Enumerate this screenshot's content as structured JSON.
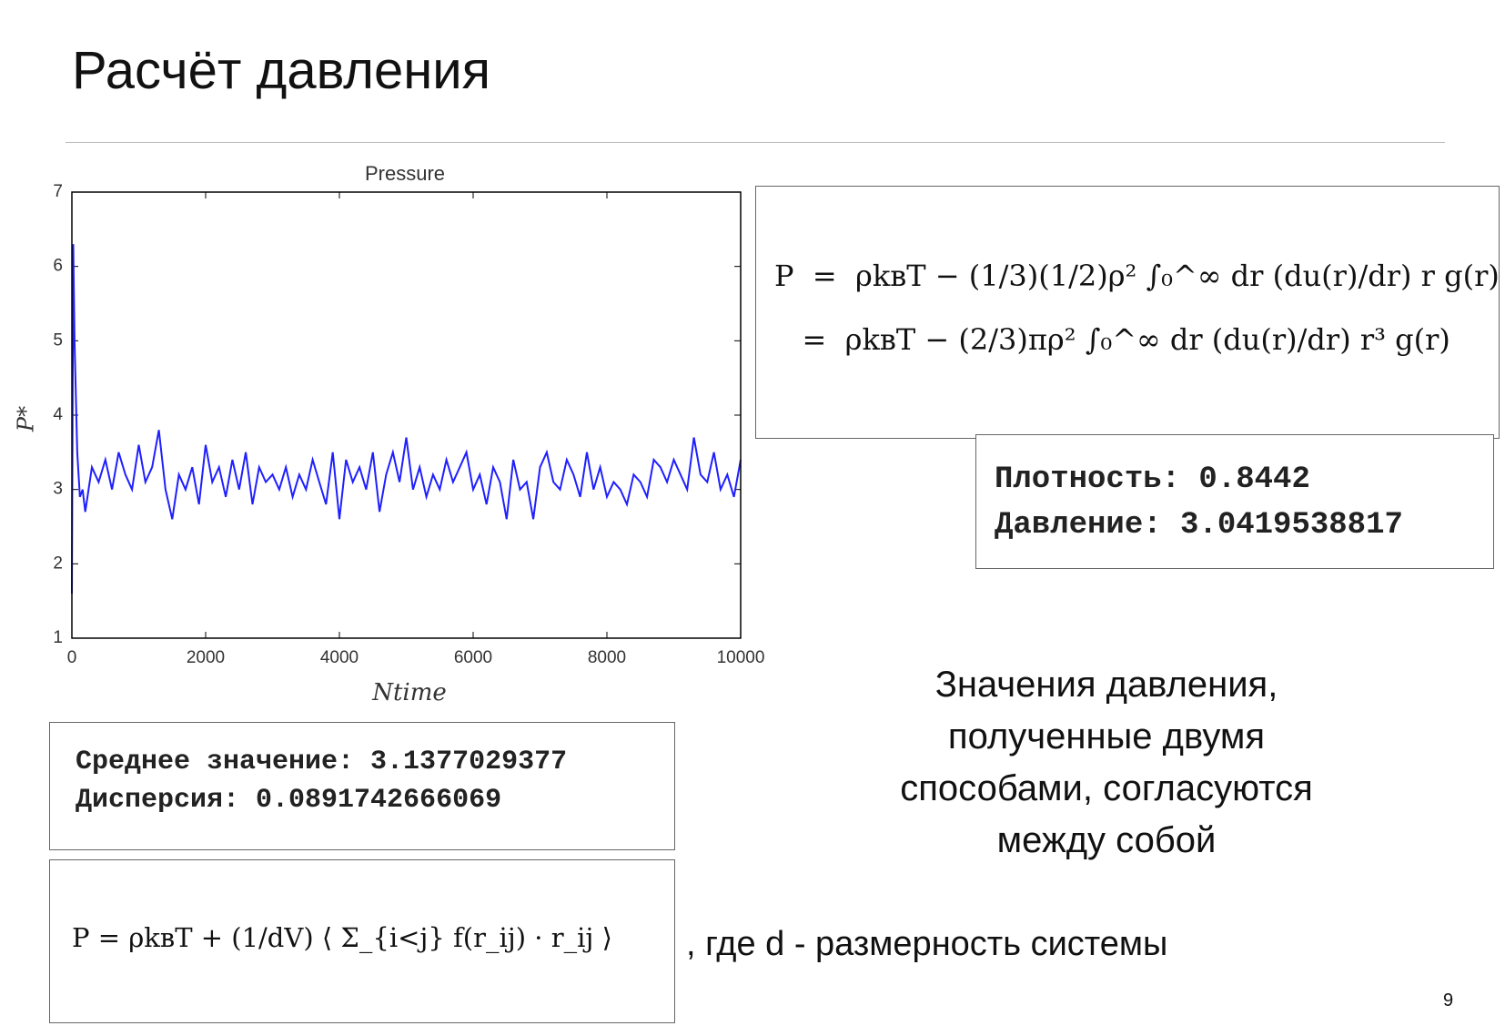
{
  "title": "Расчёт давления",
  "chart_data": {
    "type": "line",
    "title": "Pressure",
    "xlabel": "Ntime",
    "ylabel": "P*",
    "x": [
      0,
      20,
      40,
      80,
      120,
      160,
      200,
      300,
      400,
      500,
      600,
      700,
      800,
      900,
      1000,
      1100,
      1200,
      1300,
      1400,
      1500,
      1600,
      1700,
      1800,
      1900,
      2000,
      2100,
      2200,
      2300,
      2400,
      2500,
      2600,
      2700,
      2800,
      2900,
      3000,
      3100,
      3200,
      3300,
      3400,
      3500,
      3600,
      3700,
      3800,
      3900,
      4000,
      4100,
      4200,
      4300,
      4400,
      4500,
      4600,
      4700,
      4800,
      4900,
      5000,
      5100,
      5200,
      5300,
      5400,
      5500,
      5600,
      5700,
      5800,
      5900,
      6000,
      6100,
      6200,
      6300,
      6400,
      6500,
      6600,
      6700,
      6800,
      6900,
      7000,
      7100,
      7200,
      7300,
      7400,
      7500,
      7600,
      7700,
      7800,
      7900,
      8000,
      8100,
      8200,
      8300,
      8400,
      8500,
      8600,
      8700,
      8800,
      8900,
      9000,
      9100,
      9200,
      9300,
      9400,
      9500,
      9600,
      9700,
      9800,
      9900,
      10000
    ],
    "values": [
      1.6,
      6.3,
      5.0,
      3.5,
      2.9,
      3.0,
      2.7,
      3.3,
      3.1,
      3.4,
      3.0,
      3.5,
      3.2,
      3.0,
      3.6,
      3.1,
      3.3,
      3.8,
      3.0,
      2.6,
      3.2,
      3.0,
      3.3,
      2.8,
      3.6,
      3.1,
      3.3,
      2.9,
      3.4,
      3.0,
      3.5,
      2.8,
      3.3,
      3.1,
      3.2,
      3.0,
      3.3,
      2.9,
      3.2,
      3.0,
      3.4,
      3.1,
      2.8,
      3.5,
      2.6,
      3.4,
      3.1,
      3.3,
      3.0,
      3.5,
      2.7,
      3.2,
      3.5,
      3.1,
      3.7,
      3.0,
      3.3,
      2.9,
      3.2,
      3.0,
      3.4,
      3.1,
      3.3,
      3.5,
      3.0,
      3.2,
      2.8,
      3.3,
      3.1,
      2.6,
      3.4,
      3.0,
      3.1,
      2.6,
      3.3,
      3.5,
      3.1,
      3.0,
      3.4,
      3.2,
      2.9,
      3.5,
      3.0,
      3.3,
      2.9,
      3.1,
      3.0,
      2.8,
      3.2,
      3.1,
      2.9,
      3.4,
      3.3,
      3.1,
      3.4,
      3.2,
      3.0,
      3.7,
      3.2,
      3.1,
      3.5,
      3.0,
      3.2,
      2.9,
      3.4
    ],
    "color": "#1f1fff",
    "xlim": [
      0,
      10000
    ],
    "xticks": [
      0,
      2000,
      4000,
      6000,
      8000,
      10000
    ],
    "ylim": [
      1,
      7
    ],
    "yticks": [
      1,
      2,
      3,
      4,
      5,
      6,
      7
    ]
  },
  "formula_top": [
    "P  =  ρkʙT − (1/3)(1/2)ρ² ∫₀^∞ dr (du(r)/dr) r g(r)",
    "   =  ρkʙT − (2/3)πρ² ∫₀^∞ dr (du(r)/dr) r³ g(r)"
  ],
  "density_output": [
    "Плотность: 0.8442",
    "Давление: 3.0419538817"
  ],
  "mean_output": [
    "Среднее значение: 3.1377029377",
    "Дисперсия: 0.0891742666069"
  ],
  "formula_bottom": "P = ρkʙT + (1/dV) ⟨ Σ_{i<j} f(r_ij) · r_ij ⟩",
  "formula_note": ", где d - размерность системы",
  "caption": [
    "Значения давления,",
    "полученные двумя",
    "способами, согласуются",
    "между собой"
  ],
  "page_number": "9"
}
